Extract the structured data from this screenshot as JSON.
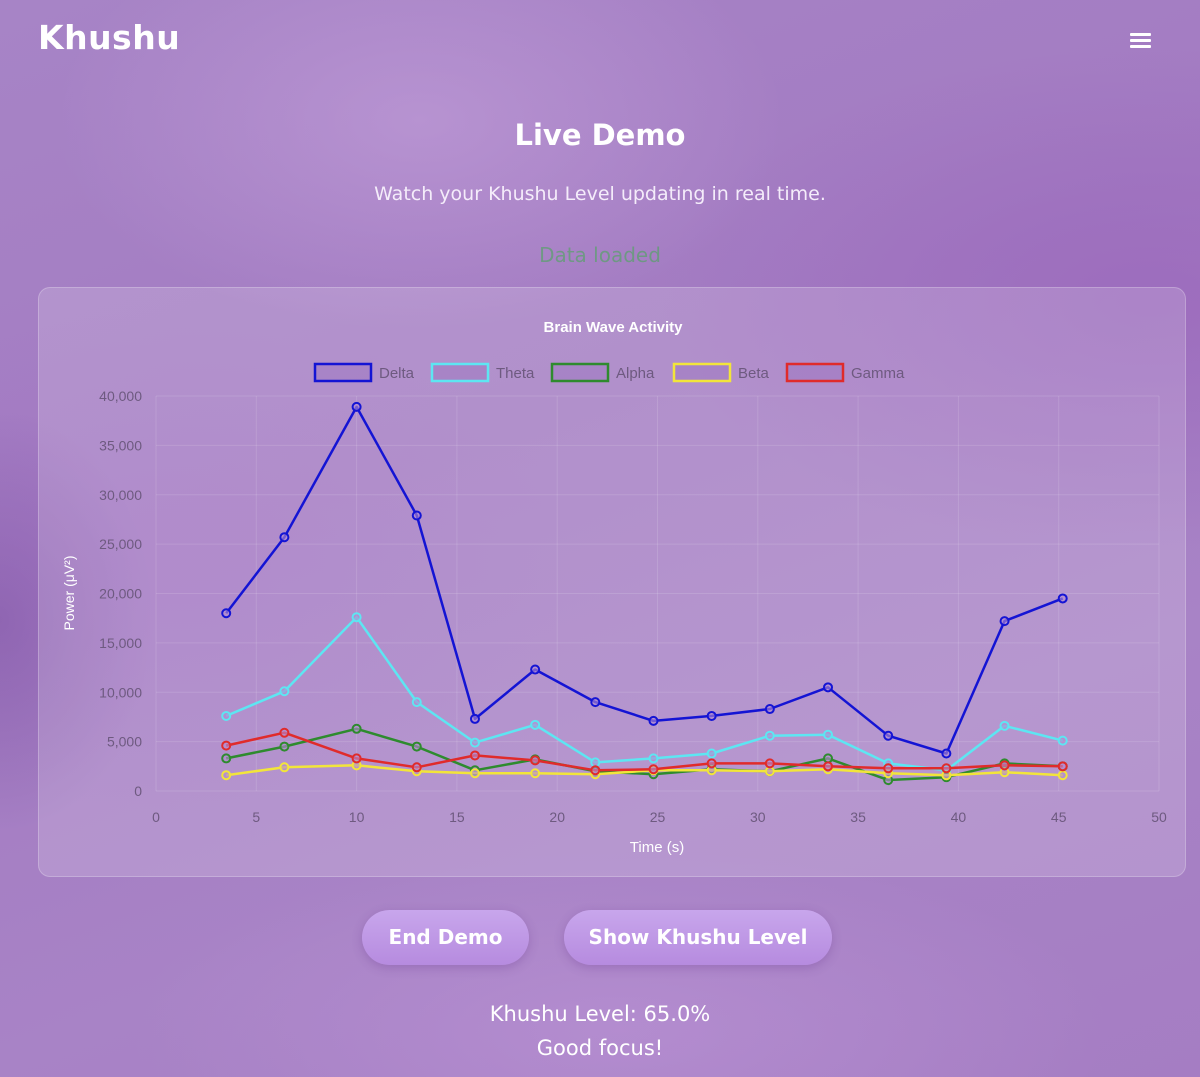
{
  "header": {
    "brand": "Khushu",
    "menu_icon": "hamburger-menu-icon"
  },
  "hero": {
    "title": "Live Demo",
    "subtitle": "Watch your Khushu Level updating in real time.",
    "status": "Data loaded"
  },
  "colors": {
    "status": "#4aa85a",
    "button": "#c09be7"
  },
  "chart_data": {
    "type": "line",
    "title": "Brain Wave Activity",
    "xlabel": "Time (s)",
    "ylabel": "Power (μV²)",
    "xlim": [
      0,
      50
    ],
    "ylim": [
      0,
      40000
    ],
    "xticks": [
      "0",
      "5",
      "10",
      "15",
      "20",
      "25",
      "30",
      "35",
      "40",
      "45",
      "50"
    ],
    "yticks": [
      "0",
      "5,000",
      "10,000",
      "15,000",
      "20,000",
      "25,000",
      "30,000",
      "35,000",
      "40,000"
    ],
    "grid": true,
    "legend_position": "top",
    "x": [
      3.5,
      6.4,
      10.0,
      13.0,
      15.9,
      18.9,
      21.9,
      24.8,
      27.7,
      30.6,
      33.5,
      36.5,
      39.4,
      42.3,
      45.2
    ],
    "series": [
      {
        "name": "Delta",
        "color": "#1414d4",
        "values": [
          18000,
          25700,
          38900,
          27900,
          7300,
          12300,
          9000,
          7100,
          7600,
          8300,
          10500,
          5600,
          3800,
          17200,
          19500
        ]
      },
      {
        "name": "Theta",
        "color": "#5de6f2",
        "values": [
          7600,
          10100,
          17600,
          9000,
          4900,
          6700,
          2900,
          3300,
          3800,
          5600,
          5700,
          2800,
          2100,
          6600,
          5100
        ]
      },
      {
        "name": "Alpha",
        "color": "#2e8b2e",
        "values": [
          3300,
          4500,
          6300,
          4500,
          2100,
          3200,
          2000,
          1700,
          2200,
          2000,
          3300,
          1100,
          1400,
          2800,
          2500
        ]
      },
      {
        "name": "Beta",
        "color": "#f2e53a",
        "values": [
          1600,
          2400,
          2600,
          2000,
          1800,
          1800,
          1700,
          2100,
          2100,
          2000,
          2200,
          1800,
          1600,
          1900,
          1600
        ]
      },
      {
        "name": "Gamma",
        "color": "#e02b2b",
        "values": [
          4600,
          5900,
          3300,
          2400,
          3600,
          3100,
          2100,
          2200,
          2800,
          2800,
          2500,
          2300,
          2300,
          2600,
          2500
        ]
      }
    ]
  },
  "buttons": {
    "end_demo": "End Demo",
    "show_level": "Show Khushu Level"
  },
  "result": {
    "level": "Khushu Level: 65.0%",
    "message": "Good focus!"
  }
}
